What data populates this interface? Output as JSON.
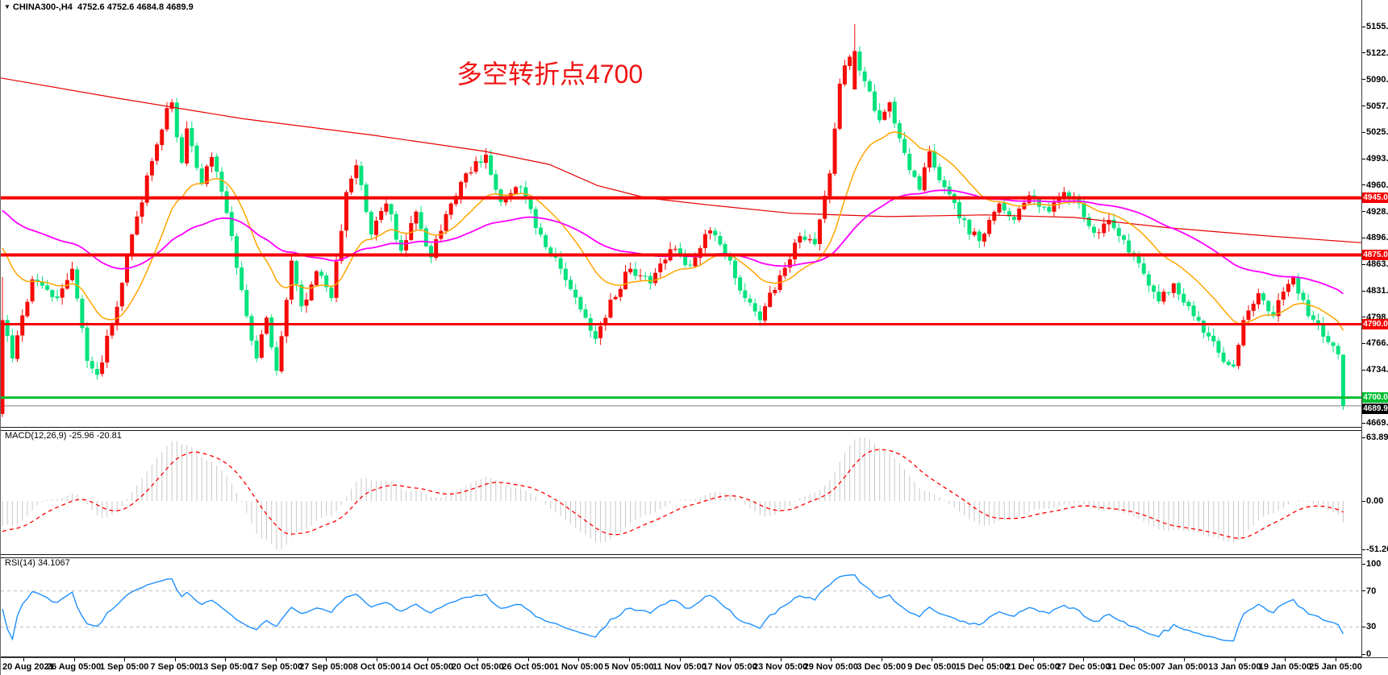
{
  "header": {
    "symbol": "CHINA300-,H4",
    "ohlc": "4752.6 4752.6 4684.8 4689.9",
    "dropdown_glyph": "▼"
  },
  "annotation": {
    "text": "多空转折点4700",
    "color": "#f01414"
  },
  "panels": {
    "macd": {
      "label": "MACD(12,26,9) -25.96 -20.81",
      "ticks": [
        {
          "v": 63.89,
          "t": "63.89"
        },
        {
          "v": 0,
          "t": "0.00"
        },
        {
          "v": -51.26,
          "t": "-51.26"
        }
      ]
    },
    "rsi": {
      "label": "RSI(14) 34.1067",
      "ticks": [
        {
          "v": 100,
          "t": "100"
        },
        {
          "v": 70,
          "t": "70"
        },
        {
          "v": 30,
          "t": "30"
        },
        {
          "v": 0,
          "t": "0"
        }
      ]
    }
  },
  "price_axis_ticks": [
    "5155.0",
    "5122.5",
    "5090.0",
    "5057.5",
    "5025.5",
    "4993.0",
    "4960.5",
    "4928.0",
    "4896.0",
    "4863.5",
    "4831.0",
    "4798.5",
    "4766.5",
    "4734.0",
    "4669.0"
  ],
  "time_axis_labels": [
    "20 Aug 2021",
    "26 Aug 05:00",
    "1 Sep 05:00",
    "7 Sep 05:00",
    "13 Sep 05:00",
    "17 Sep 05:00",
    "27 Sep 05:00",
    "8 Oct 05:00",
    "14 Oct 05:00",
    "20 Oct 05:00",
    "26 Oct 05:00",
    "1 Nov 05:00",
    "5 Nov 05:00",
    "11 Nov 05:00",
    "17 Nov 05:00",
    "23 Nov 05:00",
    "29 Nov 05:00",
    "3 Dec 05:00",
    "9 Dec 05:00",
    "15 Dec 05:00",
    "21 Dec 05:00",
    "27 Dec 05:00",
    "31 Dec 05:00",
    "7 Jan 05:00",
    "13 Jan 05:00",
    "19 Jan 05:00",
    "25 Jan 05:00"
  ],
  "chart_data": {
    "type": "candlestick",
    "symbol": "CHINA300-",
    "timeframe": "H4",
    "title_annotation": "多空转折点4700",
    "y_axis": {
      "min": 4669.0,
      "max": 5155.0,
      "grid": false
    },
    "visible_bars": 270,
    "last_bar": {
      "open": 4752.6,
      "high": 4752.6,
      "low": 4684.8,
      "close": 4689.9
    },
    "colors": {
      "bull": "#f50c08",
      "bear": "#05e27d",
      "sr_line": "#f60000",
      "support_4700": "#00be32",
      "bid_line": "#808080",
      "bid_box": "#000000",
      "ma_red": "#e60000",
      "ma_magenta": "#ff00ff",
      "ma_orange": "#ffa500",
      "macd_hist": "#c8c8c8",
      "macd_signal": "#ff0000",
      "rsi_line": "#1e90ff",
      "rsi_levels": "#bdbdbd"
    },
    "hlines": [
      {
        "price": 4945.0,
        "label": "4945.0",
        "color": "#f60000",
        "thickness": 4
      },
      {
        "price": 4875.0,
        "label": "4875.0",
        "color": "#f60000",
        "thickness": 4
      },
      {
        "price": 4790.0,
        "label": "4790.0",
        "color": "#f60000",
        "thickness": 3
      },
      {
        "price": 4700.0,
        "label": "4700.0",
        "color": "#00be32",
        "thickness": 3
      }
    ],
    "bid": {
      "price": 4689.9,
      "label": "4689.9"
    },
    "close_path_anchors": [
      [
        0,
        4795
      ],
      [
        2,
        4748
      ],
      [
        6,
        4845
      ],
      [
        11,
        4822
      ],
      [
        14,
        4858
      ],
      [
        17,
        4745
      ],
      [
        19,
        4728
      ],
      [
        22,
        4790
      ],
      [
        26,
        4900
      ],
      [
        30,
        4990
      ],
      [
        33,
        5055
      ],
      [
        34,
        5062
      ],
      [
        36,
        4988
      ],
      [
        37,
        5030
      ],
      [
        40,
        4962
      ],
      [
        42,
        4995
      ],
      [
        46,
        4898
      ],
      [
        49,
        4800
      ],
      [
        51,
        4748
      ],
      [
        53,
        4798
      ],
      [
        55,
        4733
      ],
      [
        58,
        4868
      ],
      [
        60,
        4812
      ],
      [
        63,
        4855
      ],
      [
        66,
        4822
      ],
      [
        69,
        4952
      ],
      [
        71,
        4985
      ],
      [
        74,
        4900
      ],
      [
        77,
        4938
      ],
      [
        80,
        4880
      ],
      [
        83,
        4928
      ],
      [
        86,
        4872
      ],
      [
        90,
        4938
      ],
      [
        93,
        4975
      ],
      [
        97,
        4998
      ],
      [
        100,
        4940
      ],
      [
        104,
        4958
      ],
      [
        108,
        4900
      ],
      [
        112,
        4858
      ],
      [
        116,
        4808
      ],
      [
        119,
        4772
      ],
      [
        122,
        4820
      ],
      [
        126,
        4858
      ],
      [
        130,
        4840
      ],
      [
        134,
        4882
      ],
      [
        138,
        4862
      ],
      [
        142,
        4905
      ],
      [
        146,
        4868
      ],
      [
        149,
        4822
      ],
      [
        152,
        4795
      ],
      [
        156,
        4850
      ],
      [
        160,
        4898
      ],
      [
        163,
        4888
      ],
      [
        166,
        4975
      ],
      [
        168,
        5085
      ],
      [
        170,
        5118
      ],
      [
        171,
        5125
      ],
      [
        173,
        5088
      ],
      [
        176,
        5040
      ],
      [
        178,
        5062
      ],
      [
        181,
        5000
      ],
      [
        184,
        4955
      ],
      [
        186,
        5002
      ],
      [
        189,
        4958
      ],
      [
        192,
        4920
      ],
      [
        196,
        4892
      ],
      [
        200,
        4938
      ],
      [
        203,
        4918
      ],
      [
        206,
        4948
      ],
      [
        210,
        4928
      ],
      [
        213,
        4952
      ],
      [
        216,
        4938
      ],
      [
        219,
        4902
      ],
      [
        222,
        4918
      ],
      [
        226,
        4878
      ],
      [
        229,
        4852
      ],
      [
        232,
        4818
      ],
      [
        235,
        4840
      ],
      [
        238,
        4812
      ],
      [
        242,
        4775
      ],
      [
        244,
        4755
      ],
      [
        247,
        4738
      ],
      [
        249,
        4795
      ],
      [
        252,
        4828
      ],
      [
        255,
        4800
      ],
      [
        257,
        4830
      ],
      [
        259,
        4848
      ],
      [
        262,
        4800
      ],
      [
        264,
        4790
      ],
      [
        266,
        4768
      ],
      [
        268,
        4753
      ],
      [
        269,
        4690
      ]
    ],
    "bar_overrides": {
      "0": {
        "open": 4680,
        "low": 4676,
        "close": 4795,
        "high": 4848
      },
      "19": {
        "low": 4722
      },
      "55": {
        "low": 4727
      },
      "171": {
        "open": 5078,
        "close": 5125,
        "high": 5158
      },
      "247": {
        "low": 4736
      },
      "269": {
        "open": 4752.6,
        "high": 4752.6,
        "low": 4684.8,
        "close": 4689.9
      }
    },
    "ma_red_points": [
      [
        0,
        5092
      ],
      [
        140,
        5068
      ],
      [
        300,
        5042
      ],
      [
        460,
        5022
      ],
      [
        600,
        5002
      ],
      [
        680,
        4986
      ],
      [
        740,
        4960
      ],
      [
        800,
        4945
      ],
      [
        880,
        4936
      ],
      [
        980,
        4926
      ],
      [
        1100,
        4922
      ],
      [
        1220,
        4924
      ],
      [
        1330,
        4921
      ],
      [
        1450,
        4908
      ],
      [
        1560,
        4899
      ],
      [
        1687,
        4890
      ]
    ],
    "ema_overlays": [
      {
        "name": "ma_orange",
        "period": 18,
        "seed": 4894
      },
      {
        "name": "ma_magenta",
        "period": 60,
        "seed": 4934
      }
    ],
    "macd": {
      "params": "12,26,9",
      "value": -25.96,
      "signal": -20.81,
      "max": 63.89,
      "min": -51.26
    },
    "rsi": {
      "period": 14,
      "value": 34.1067,
      "levels": [
        70,
        30
      ]
    }
  }
}
